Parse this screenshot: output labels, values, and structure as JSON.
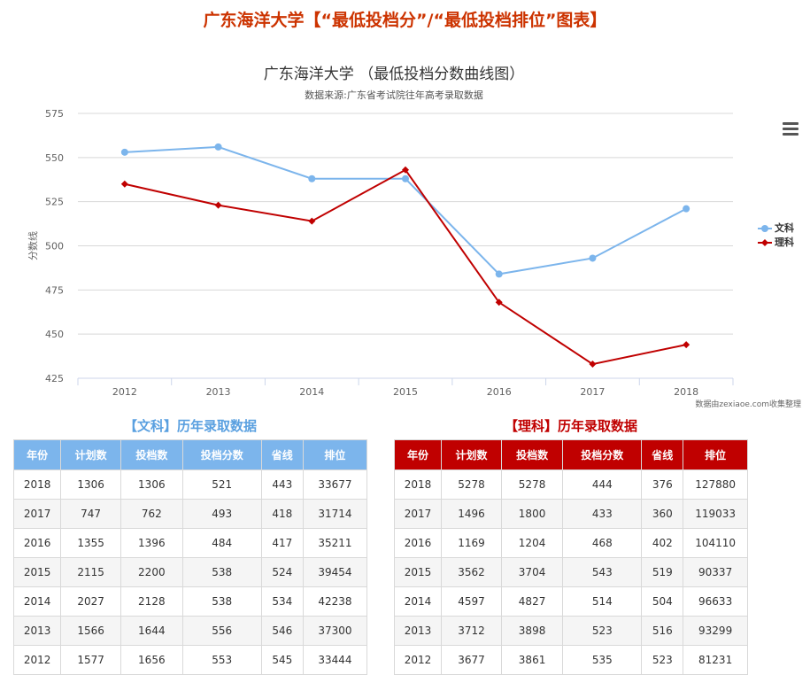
{
  "page_title": "广东海洋大学【“最低投档分”/“最低投档排位”图表】",
  "credit": "数据由zexiaoe.com收集整理",
  "chart_data": {
    "type": "line",
    "title": "广东海洋大学 （最低投档分数曲线图）",
    "subtitle": "数据来源:广东省考试院往年高考录取数据",
    "ylabel": "分数线",
    "xlabel": "",
    "categories": [
      "2012",
      "2013",
      "2014",
      "2015",
      "2016",
      "2017",
      "2018"
    ],
    "ylim": [
      425,
      575
    ],
    "yticks": [
      "575",
      "550",
      "525",
      "500",
      "475",
      "450",
      "425"
    ],
    "grid": true,
    "legend_position": "right",
    "series": [
      {
        "name": "文科",
        "color": "#7cb5ec",
        "marker": "circle",
        "values": [
          553,
          556,
          538,
          538,
          484,
          493,
          521
        ]
      },
      {
        "name": "理科",
        "color": "#c00000",
        "marker": "diamond",
        "values": [
          535,
          523,
          514,
          543,
          468,
          433,
          444
        ]
      }
    ]
  },
  "menu_icon": "hamburger-menu-icon",
  "wen_table": {
    "title": "【文科】历年录取数据",
    "headers": [
      "年份",
      "计划数",
      "投档数",
      "投档分数",
      "省线",
      "排位"
    ],
    "rows": [
      [
        "2018",
        "1306",
        "1306",
        "521",
        "443",
        "33677"
      ],
      [
        "2017",
        "747",
        "762",
        "493",
        "418",
        "31714"
      ],
      [
        "2016",
        "1355",
        "1396",
        "484",
        "417",
        "35211"
      ],
      [
        "2015",
        "2115",
        "2200",
        "538",
        "524",
        "39454"
      ],
      [
        "2014",
        "2027",
        "2128",
        "538",
        "534",
        "42238"
      ],
      [
        "2013",
        "1566",
        "1644",
        "556",
        "546",
        "37300"
      ],
      [
        "2012",
        "1577",
        "1656",
        "553",
        "545",
        "33444"
      ]
    ]
  },
  "li_table": {
    "title": "【理科】历年录取数据",
    "headers": [
      "年份",
      "计划数",
      "投档数",
      "投档分数",
      "省线",
      "排位"
    ],
    "rows": [
      [
        "2018",
        "5278",
        "5278",
        "444",
        "376",
        "127880"
      ],
      [
        "2017",
        "1496",
        "1800",
        "433",
        "360",
        "119033"
      ],
      [
        "2016",
        "1169",
        "1204",
        "468",
        "402",
        "104110"
      ],
      [
        "2015",
        "3562",
        "3704",
        "543",
        "519",
        "90337"
      ],
      [
        "2014",
        "4597",
        "4827",
        "514",
        "504",
        "96633"
      ],
      [
        "2013",
        "3712",
        "3898",
        "523",
        "516",
        "93299"
      ],
      [
        "2012",
        "3677",
        "3861",
        "535",
        "523",
        "81231"
      ]
    ]
  }
}
